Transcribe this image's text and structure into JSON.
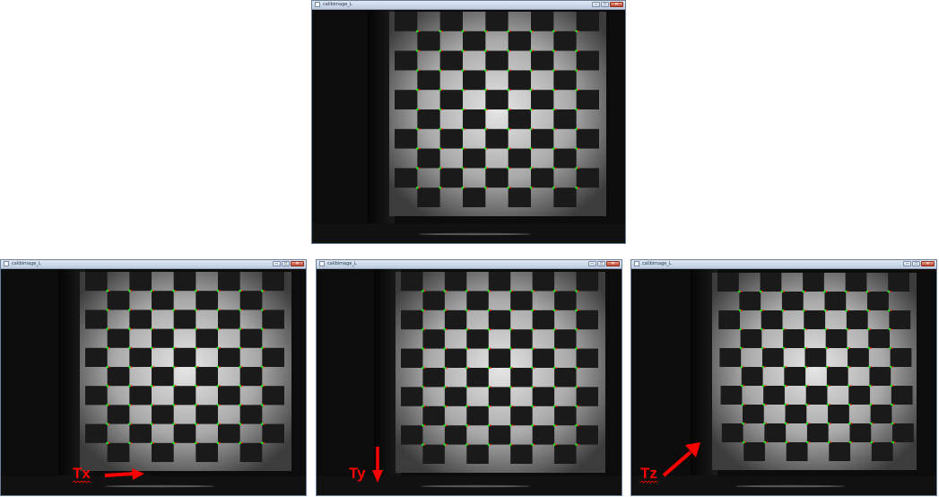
{
  "colors": {
    "corner_green": "#19e619",
    "corner_red": "#ff1a1a",
    "arrow_red": "#ff0000",
    "dark_square": "#1a1a1a"
  },
  "window_title": "calibimage_L",
  "windows": [
    {
      "id": "reference",
      "title": "calibimage_L"
    },
    {
      "id": "tx",
      "title": "calibimage_L",
      "label": "Tx",
      "arrow_direction": "right"
    },
    {
      "id": "ty",
      "title": "calibimage_L",
      "label": "Ty",
      "arrow_direction": "down"
    },
    {
      "id": "tz",
      "title": "calibimage_L",
      "label": "Tz",
      "arrow_direction": "up-right"
    }
  ],
  "checkerboard": {
    "rows": 10,
    "cols": 9,
    "inner_corner_rows": 9,
    "inner_corner_cols": 8
  },
  "titlebar_buttons": {
    "minimize": "–",
    "maximize": "□",
    "close": "✕"
  }
}
